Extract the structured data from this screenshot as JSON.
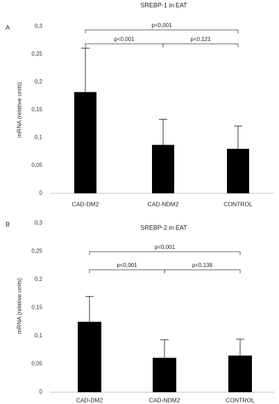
{
  "chart_data": [
    {
      "type": "bar",
      "panel_label": "A",
      "title": "SREBP-1 in EAT",
      "ylabel": "mRNA (relative units)",
      "xlabel": "",
      "categories": [
        "CAD-DM2",
        "CAD-NDM2",
        "CONTROL"
      ],
      "values": [
        0.182,
        0.087,
        0.08
      ],
      "errors": [
        0.079,
        0.046,
        0.041
      ],
      "ylim": [
        0,
        0.3
      ],
      "yticks": [
        0,
        0.05,
        0.1,
        0.15,
        0.2,
        0.25,
        0.3
      ],
      "ytick_labels": [
        "0",
        "0,05",
        "0,1",
        "0,15",
        "0,2",
        "0,25",
        "0,3"
      ],
      "bar_color": "#000000",
      "brackets": [
        {
          "from": 0,
          "to": 2,
          "label": "p<0,001",
          "level": 2
        },
        {
          "from": 0,
          "to": 1,
          "label": "p<0,001",
          "level": 1
        },
        {
          "from": 1,
          "to": 2,
          "label": "p<0,121",
          "level": 1
        }
      ]
    },
    {
      "type": "bar",
      "panel_label": "B",
      "title": "SREBP-2 in EAT",
      "ylabel": "mRNA (relative units)",
      "xlabel": "",
      "categories": [
        "CAD-DM2",
        "CAD-NDM2",
        "CONTROL"
      ],
      "values": [
        0.125,
        0.061,
        0.065
      ],
      "errors": [
        0.045,
        0.032,
        0.029
      ],
      "ylim": [
        0,
        0.3
      ],
      "yticks": [
        0,
        0.05,
        0.1,
        0.15,
        0.2,
        0.25,
        0.3
      ],
      "ytick_labels": [
        "0",
        "0,05",
        "0,1",
        "0,15",
        "0,2",
        "0,25",
        "0,3"
      ],
      "bar_color": "#000000",
      "brackets": [
        {
          "from": 0,
          "to": 2,
          "label": "p<0,001",
          "level": 2
        },
        {
          "from": 0,
          "to": 1,
          "label": "p<0,001",
          "level": 1
        },
        {
          "from": 1,
          "to": 2,
          "label": "p<0,138",
          "level": 1
        }
      ]
    }
  ]
}
